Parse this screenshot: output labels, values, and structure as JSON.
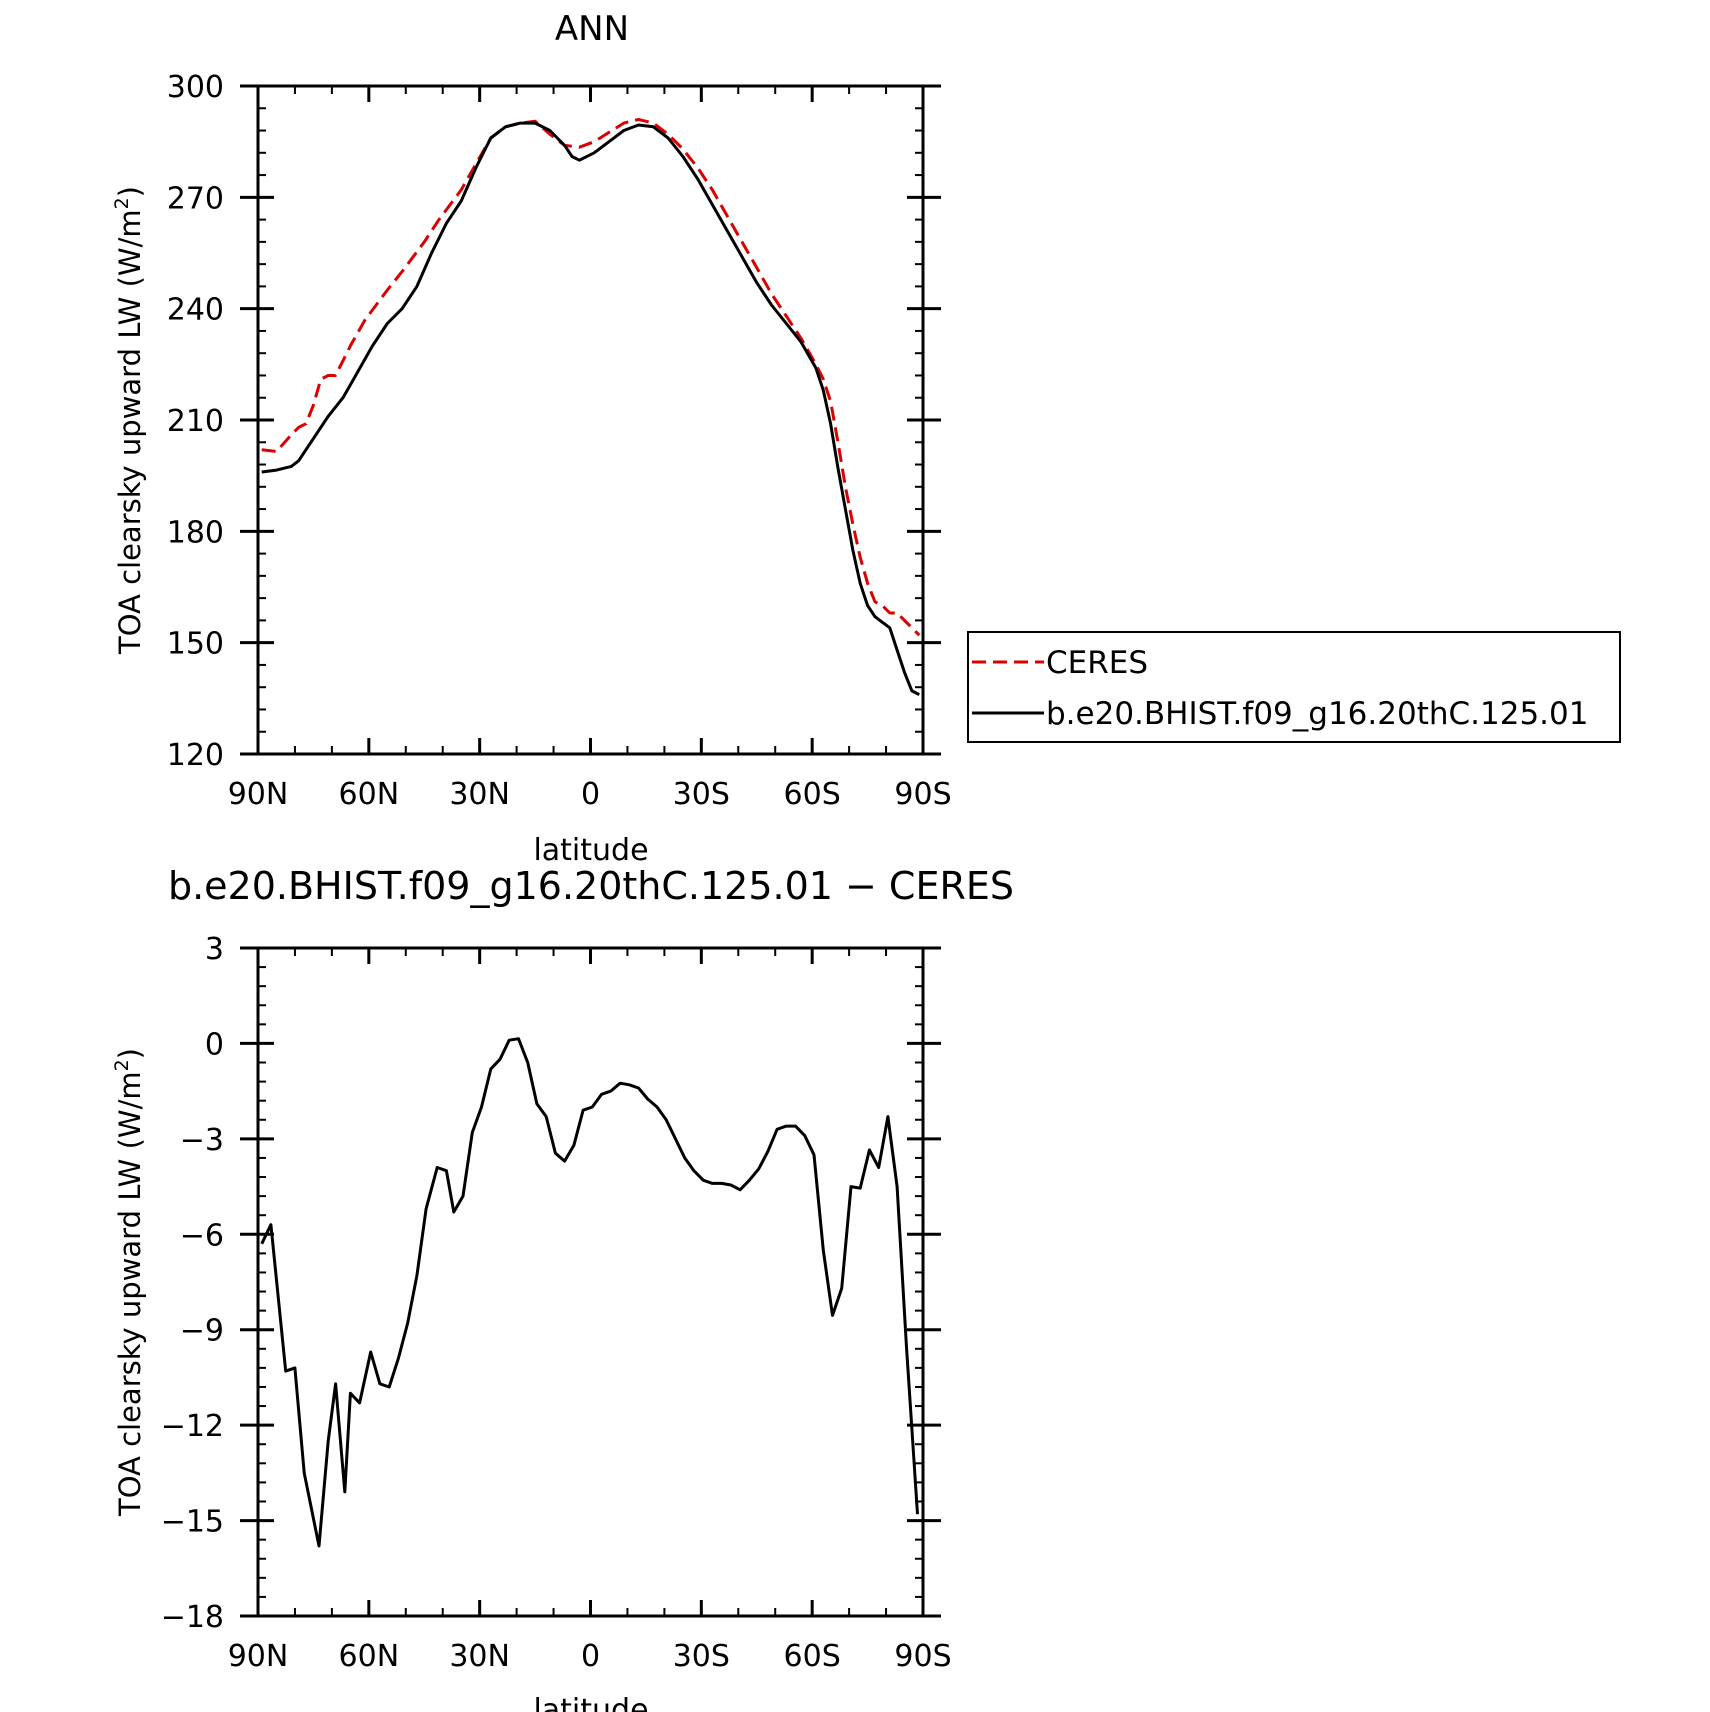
{
  "chart_data": [
    {
      "type": "line",
      "title": "ANN",
      "xlabel": "latitude",
      "ylabel_main": "TOA clearsky upward LW (W/m",
      "ylabel_sup": "2",
      "ylabel_close": ")",
      "xlim": [
        90,
        -90
      ],
      "ylim": [
        120,
        300
      ],
      "x_ticks": [
        90,
        60,
        30,
        0,
        -30,
        -60,
        -90
      ],
      "x_tick_labels": [
        "90N",
        "60N",
        "30N",
        "0",
        "30S",
        "60S",
        "90S"
      ],
      "y_ticks": [
        120,
        150,
        180,
        210,
        240,
        270,
        300
      ],
      "y_tick_labels": [
        "120",
        "150",
        "180",
        "210",
        "240",
        "270",
        "300"
      ],
      "legend_position": "right",
      "series": [
        {
          "name": "CERES",
          "color": "#dd0000",
          "style": "dashed",
          "x": [
            89,
            85,
            81,
            79,
            77,
            75,
            73,
            71,
            69,
            65,
            61,
            55,
            51,
            45,
            41,
            35,
            31,
            27,
            23,
            19,
            15,
            11,
            7,
            3,
            -1,
            -5,
            -9,
            -13,
            -17,
            -21,
            -25,
            -29,
            -33,
            -37,
            -41,
            -45,
            -49,
            -53,
            -57,
            -61,
            -63,
            -65,
            -67,
            -69,
            -71,
            -73,
            -75,
            -77,
            -79,
            -81,
            -83,
            -85,
            -89
          ],
          "values": [
            202,
            201.5,
            206,
            208,
            209,
            214,
            221,
            222,
            222,
            230,
            237,
            245,
            250,
            258,
            264,
            272,
            279,
            286,
            289,
            290,
            290.5,
            287,
            284,
            283.5,
            285,
            287.5,
            290,
            291,
            290,
            287,
            283,
            278,
            272,
            265,
            258,
            251,
            244,
            238,
            232,
            225,
            221,
            215,
            204,
            192,
            182,
            173,
            166,
            161,
            160,
            158,
            158,
            156,
            152
          ]
        },
        {
          "name": "b.e20.BHIST.f09_g16.20thC.125.01",
          "color": "#000000",
          "style": "solid",
          "x": [
            89,
            85,
            81,
            79,
            77,
            75,
            73,
            71,
            67,
            63,
            59,
            55,
            51,
            47,
            43,
            39,
            35,
            31,
            27,
            23,
            19,
            15,
            11,
            7,
            5,
            3,
            -1,
            -5,
            -9,
            -13,
            -17,
            -21,
            -25,
            -29,
            -33,
            -37,
            -41,
            -45,
            -49,
            -53,
            -57,
            -61,
            -63,
            -65,
            -67,
            -69,
            -71,
            -73,
            -75,
            -77,
            -79,
            -81,
            -83,
            -85,
            -87,
            -89
          ],
          "values": [
            196,
            196.5,
            197.5,
            199,
            202,
            205,
            208,
            211,
            216,
            223,
            230,
            236,
            240,
            246,
            255,
            263,
            269,
            278,
            286,
            289,
            290,
            290,
            288,
            284,
            281,
            280,
            282,
            285,
            288,
            289.5,
            289,
            286,
            281,
            275,
            268,
            261,
            254,
            247,
            241,
            236,
            231,
            224,
            218,
            209,
            197,
            186,
            175,
            166,
            160,
            157,
            155.5,
            154,
            148,
            142,
            137,
            136
          ]
        }
      ]
    },
    {
      "type": "line",
      "title": "b.e20.BHIST.f09_g16.20thC.125.01 − CERES",
      "xlabel": "latitude",
      "ylabel_main": "TOA clearsky upward LW (W/m",
      "ylabel_sup": "2",
      "ylabel_close": ")",
      "xlim": [
        90,
        -90
      ],
      "ylim": [
        -18,
        3
      ],
      "x_ticks": [
        90,
        60,
        30,
        0,
        -30,
        -60,
        -90
      ],
      "x_tick_labels": [
        "90N",
        "60N",
        "30N",
        "0",
        "30S",
        "60S",
        "90S"
      ],
      "y_ticks": [
        3,
        0,
        -3,
        -6,
        -9,
        -12,
        -15,
        -18
      ],
      "y_tick_labels": [
        "3",
        "0",
        "−3",
        "−6",
        "−9",
        "−12",
        "−15",
        "−18"
      ],
      "series": [
        {
          "color": "#000000",
          "style": "solid",
          "x": [
            89,
            86.5,
            82.5,
            80,
            77.5,
            73.5,
            71,
            69,
            66.5,
            65,
            62.5,
            59.5,
            57,
            54.5,
            52,
            49.5,
            47,
            44.5,
            41.5,
            39,
            37,
            34.5,
            32,
            29.5,
            27,
            24.5,
            22,
            19.5,
            17,
            14.5,
            12,
            9.5,
            7,
            4.5,
            2,
            -0.5,
            -3,
            -5.5,
            -8,
            -10.5,
            -13,
            -15.5,
            -18,
            -20.5,
            -23,
            -25.5,
            -28,
            -30.5,
            -33,
            -35.5,
            -38,
            -40.5,
            -43,
            -45.5,
            -48,
            -50.5,
            -53,
            -55.5,
            -58,
            -60.5,
            -63,
            -65.5,
            -68,
            -70.5,
            -73,
            -75.5,
            -78,
            -80.5,
            -83,
            -85.5,
            -88.5
          ],
          "values": [
            -6.3,
            -5.7,
            -10.3,
            -10.2,
            -13.5,
            -15.8,
            -12.5,
            -10.7,
            -14.1,
            -11.0,
            -11.3,
            -9.7,
            -10.7,
            -10.8,
            -9.9,
            -8.8,
            -7.3,
            -5.2,
            -3.9,
            -4.0,
            -5.3,
            -4.8,
            -2.8,
            -2.0,
            -0.8,
            -0.5,
            0.1,
            0.15,
            -0.6,
            -1.9,
            -2.3,
            -3.45,
            -3.7,
            -3.2,
            -2.1,
            -2.0,
            -1.6,
            -1.5,
            -1.25,
            -1.3,
            -1.4,
            -1.75,
            -2.0,
            -2.4,
            -3.0,
            -3.6,
            -4.0,
            -4.3,
            -4.4,
            -4.4,
            -4.45,
            -4.6,
            -4.3,
            -3.95,
            -3.4,
            -2.7,
            -2.6,
            -2.6,
            -2.9,
            -3.5,
            -6.5,
            -8.55,
            -7.7,
            -4.5,
            -4.55,
            -3.35,
            -3.9,
            -2.3,
            -4.5,
            -9.5,
            -14.8
          ]
        }
      ]
    }
  ]
}
